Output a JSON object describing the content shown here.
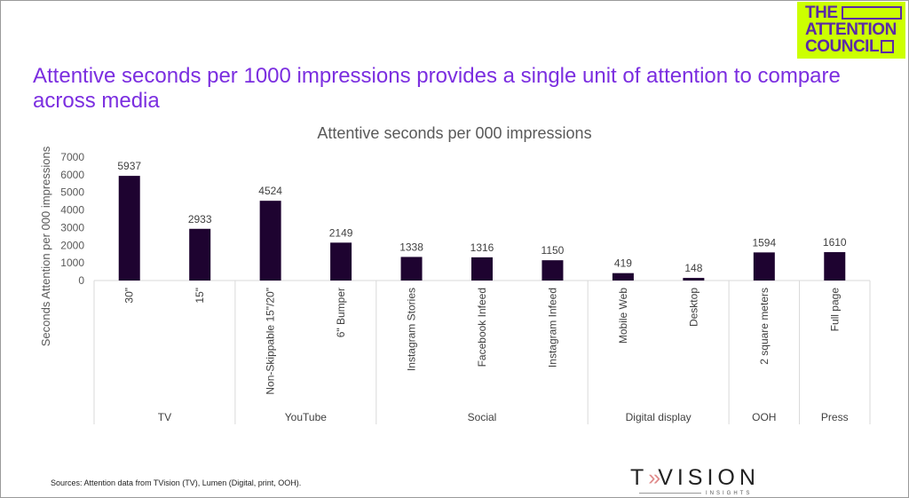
{
  "headline": "Attentive seconds per 1000 impressions provides a single unit of attention to compare across media",
  "logo": {
    "line1": "THE",
    "line2": "ATTENTION",
    "line3": "COUNCIL"
  },
  "source": "Sources: Attention data from TVision (TV), Lumen (Digital, print, OOH).",
  "tvision": {
    "name_t": "T",
    "name_chev": "»",
    "name_rest": "VISION",
    "sub": "INSIGHTS"
  },
  "colors": {
    "bar": "#1e0330",
    "headline": "#7b2ee0",
    "logo_bg": "#ccff00",
    "logo_text": "#5b2aa8"
  },
  "chart_data": {
    "type": "bar",
    "title": "Attentive seconds per 000 impressions",
    "ylabel": "Seconds Attention per 000 impressions",
    "xlabel": "",
    "ylim": [
      0,
      7000
    ],
    "yticks": [
      0,
      1000,
      2000,
      3000,
      4000,
      5000,
      6000,
      7000
    ],
    "categories": [
      "30\"",
      "15\"",
      "Non-Skippable 15\"/20\"",
      "6\" Bumper",
      "Instagram Stories",
      "Facebook Infeed",
      "Instagram Infeed",
      "Mobile Web",
      "Desktop",
      "2 square meters",
      "Full page"
    ],
    "values": [
      5937,
      2933,
      4524,
      2149,
      1338,
      1316,
      1150,
      419,
      148,
      1594,
      1610
    ],
    "groups": [
      {
        "name": "TV",
        "count": 2
      },
      {
        "name": "YouTube",
        "count": 2
      },
      {
        "name": "Social",
        "count": 3
      },
      {
        "name": "Digital display",
        "count": 2
      },
      {
        "name": "OOH",
        "count": 1
      },
      {
        "name": "Press",
        "count": 1
      }
    ],
    "grid": false,
    "legend": "none"
  }
}
